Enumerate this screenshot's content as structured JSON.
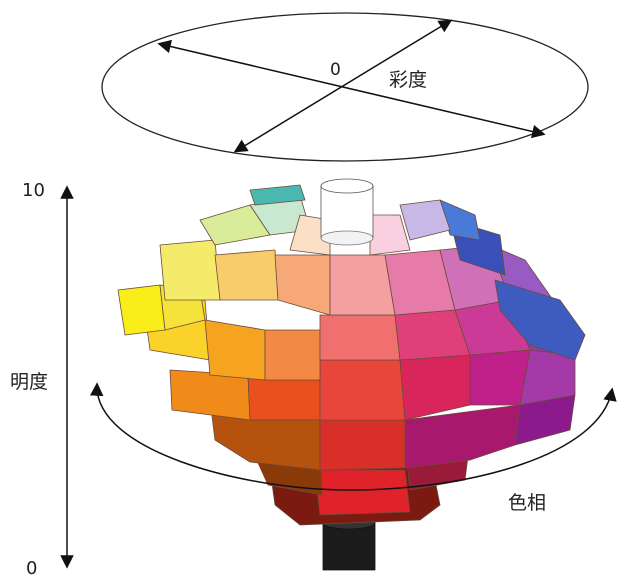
{
  "labels": {
    "chroma": "彩度",
    "chroma_zero": "0",
    "value": "明度",
    "value_top": "10",
    "value_bottom": "0",
    "hue": "色相"
  }
}
